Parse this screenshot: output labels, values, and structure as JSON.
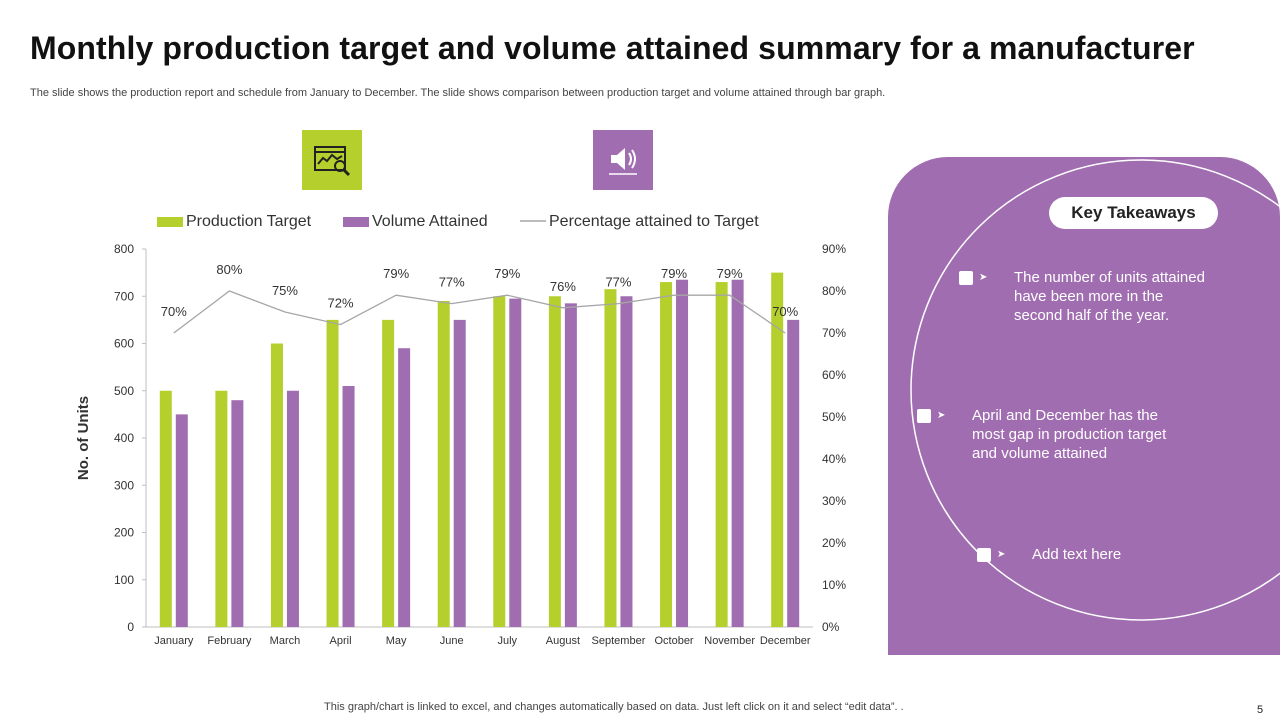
{
  "slide": {
    "title": "Monthly production target and volume attained summary for a manufacturer",
    "subtitle": "The slide shows the production report and schedule from January to December. The slide shows comparison between production target and volume attained through  bar graph.",
    "footnote": "This graph/chart is linked to excel,  and changes automatically based on data. Just left click on it and select “edit data”. .",
    "page_number": "5"
  },
  "icons": {
    "left": "chart-analysis-icon",
    "right": "megaphone-icon"
  },
  "colors": {
    "green": "#B5CF2D",
    "purple": "#A06DB0",
    "line": "#A6A6A6"
  },
  "chart_data": {
    "type": "bar",
    "categories": [
      "January",
      "February",
      "March",
      "April",
      "May",
      "June",
      "July",
      "August",
      "September",
      "October",
      "November",
      "December"
    ],
    "series": [
      {
        "name": "Production Target",
        "type": "bar",
        "axis": "left",
        "values": [
          500,
          500,
          600,
          650,
          650,
          690,
          700,
          700,
          715,
          730,
          730,
          750
        ]
      },
      {
        "name": "Volume Attained",
        "type": "bar",
        "axis": "left",
        "values": [
          450,
          480,
          500,
          510,
          590,
          650,
          695,
          685,
          700,
          735,
          735,
          650
        ]
      },
      {
        "name": "Percentage attained to Target",
        "type": "line",
        "axis": "right",
        "values": [
          70,
          80,
          75,
          72,
          79,
          77,
          79,
          76,
          77,
          79,
          79,
          70
        ],
        "labels": [
          "70%",
          "80%",
          "75%",
          "72%",
          "79%",
          "77%",
          "79%",
          "76%",
          "77%",
          "79%",
          "79%",
          "70%"
        ]
      }
    ],
    "ylabel": "No. of Units",
    "ylim": [
      0,
      800
    ],
    "y_ticks": [
      0,
      100,
      200,
      300,
      400,
      500,
      600,
      700,
      800
    ],
    "y2lim": [
      0,
      90
    ],
    "y2_ticks": [
      "0%",
      "10%",
      "20%",
      "30%",
      "40%",
      "50%",
      "60%",
      "70%",
      "80%",
      "90%"
    ],
    "legend_position": "top",
    "grid": false
  },
  "takeaways": {
    "heading": "Key Takeaways",
    "items": [
      "The number of units attained have been more in the second half of the year.",
      "April and December has the most gap in production target and volume attained",
      "Add text here"
    ]
  }
}
